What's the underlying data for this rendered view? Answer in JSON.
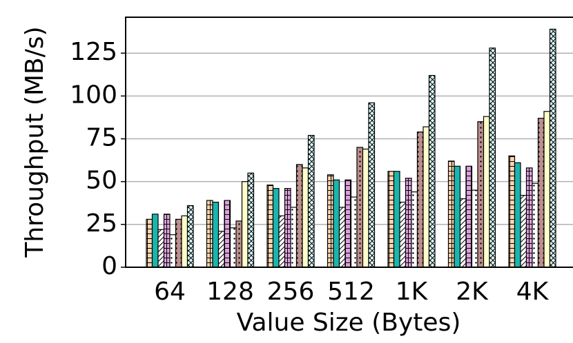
{
  "chart_data": {
    "type": "bar",
    "xlabel": "Value Size (Bytes)",
    "ylabel": "Throughput (MB/s)",
    "categories": [
      "64",
      "128",
      "256",
      "512",
      "1K",
      "2K",
      "4K"
    ],
    "series": [
      {
        "color": "#fcd5b0",
        "hatch": "+",
        "values": [
          28,
          39,
          48,
          54,
          56,
          62,
          65
        ]
      },
      {
        "color": "#1ab5ad",
        "hatch": "",
        "values": [
          31,
          38,
          46,
          51,
          56,
          59,
          61
        ]
      },
      {
        "color": "#ffffff",
        "hatch": "/",
        "values": [
          22,
          21,
          30,
          35,
          38,
          40,
          42
        ]
      },
      {
        "color": "#dda0dd",
        "hatch": "+",
        "values": [
          31,
          39,
          46,
          51,
          52,
          59,
          58
        ]
      },
      {
        "color": "#ffffff",
        "hatch": ".",
        "values": [
          19,
          23,
          35,
          41,
          44,
          45,
          49
        ]
      },
      {
        "color": "#bc8f8f",
        "hatch": ".",
        "values": [
          28,
          27,
          60,
          70,
          79,
          85,
          87
        ]
      },
      {
        "color": "#ffffcc",
        "hatch": "",
        "values": [
          30,
          50,
          58,
          69,
          82,
          88,
          91
        ]
      },
      {
        "color": "#e0ffff",
        "hatch": "x",
        "values": [
          36,
          55,
          77,
          96,
          112,
          128,
          139
        ]
      }
    ],
    "ylim": [
      0,
      146
    ],
    "yticks": [
      0,
      25,
      50,
      75,
      100,
      125
    ],
    "grid": true
  }
}
